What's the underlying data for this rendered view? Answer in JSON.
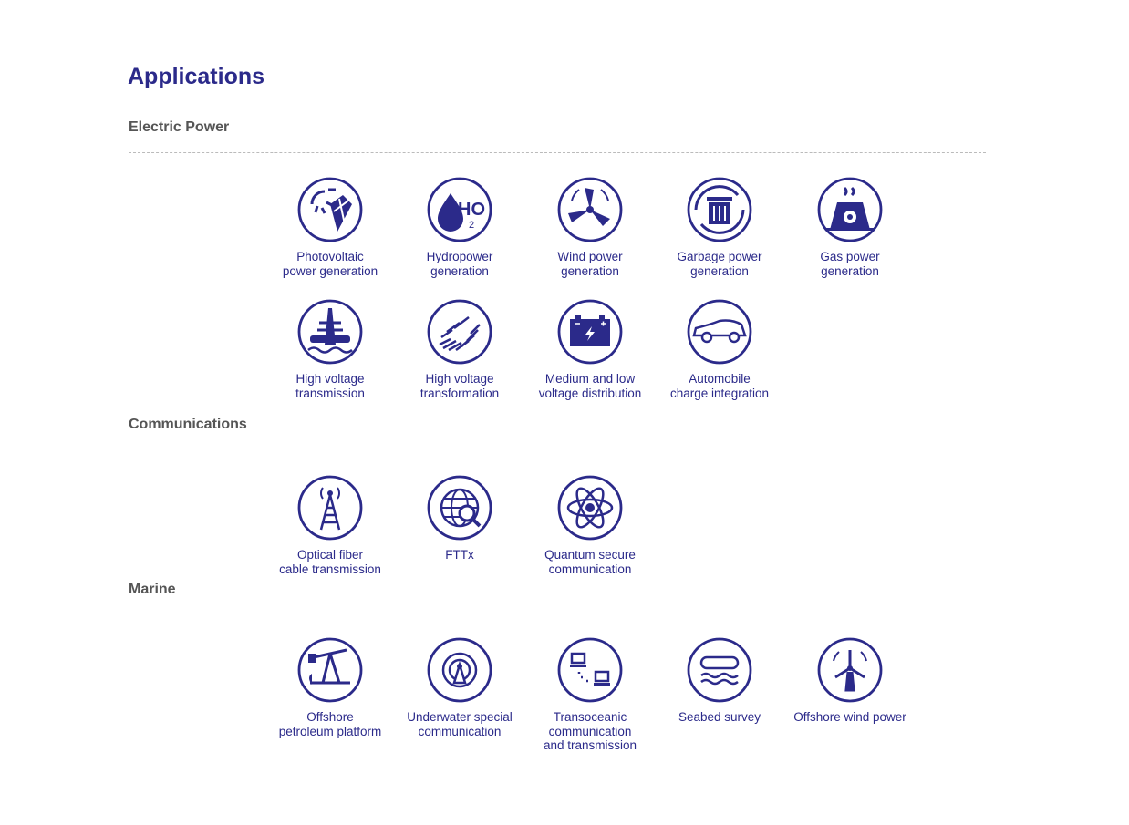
{
  "title": "Applications",
  "accent": "#2b2a8a",
  "sections": [
    {
      "heading": "Electric Power",
      "items": [
        {
          "label": "Photovoltaic\npower generation",
          "icon": "solar-panel-icon"
        },
        {
          "label": "Hydropower\ngeneration",
          "icon": "water-drop-h2o-icon"
        },
        {
          "label": "Wind power\ngeneration",
          "icon": "wind-turbine-icon"
        },
        {
          "label": "Garbage power\ngeneration",
          "icon": "recycle-bin-icon"
        },
        {
          "label": "Gas power\ngeneration",
          "icon": "power-plant-icon"
        },
        {
          "label": "High voltage\ntransmission",
          "icon": "transmission-tower-icon"
        },
        {
          "label": "High voltage\ntransformation",
          "icon": "coil-icon"
        },
        {
          "label": "Medium and low\nvoltage distribution",
          "icon": "battery-icon"
        },
        {
          "label": "Automobile\ncharge integration",
          "icon": "car-icon"
        }
      ]
    },
    {
      "heading": "Communications",
      "items": [
        {
          "label": "Optical fiber\ncable transmission",
          "icon": "antenna-tower-icon"
        },
        {
          "label": "FTTx",
          "icon": "globe-search-icon"
        },
        {
          "label": "Quantum secure\ncommunication",
          "icon": "atom-icon"
        }
      ]
    },
    {
      "heading": "Marine",
      "items": [
        {
          "label": "Offshore\npetroleum platform",
          "icon": "oil-pump-icon"
        },
        {
          "label": "Underwater special\ncommunication",
          "icon": "signal-beacon-icon"
        },
        {
          "label": "Transoceanic\ncommunication\nand transmission",
          "icon": "network-computers-icon"
        },
        {
          "label": "Seabed survey",
          "icon": "goggles-waves-icon"
        },
        {
          "label": "Offshore wind power",
          "icon": "offshore-turbine-icon"
        }
      ]
    }
  ]
}
